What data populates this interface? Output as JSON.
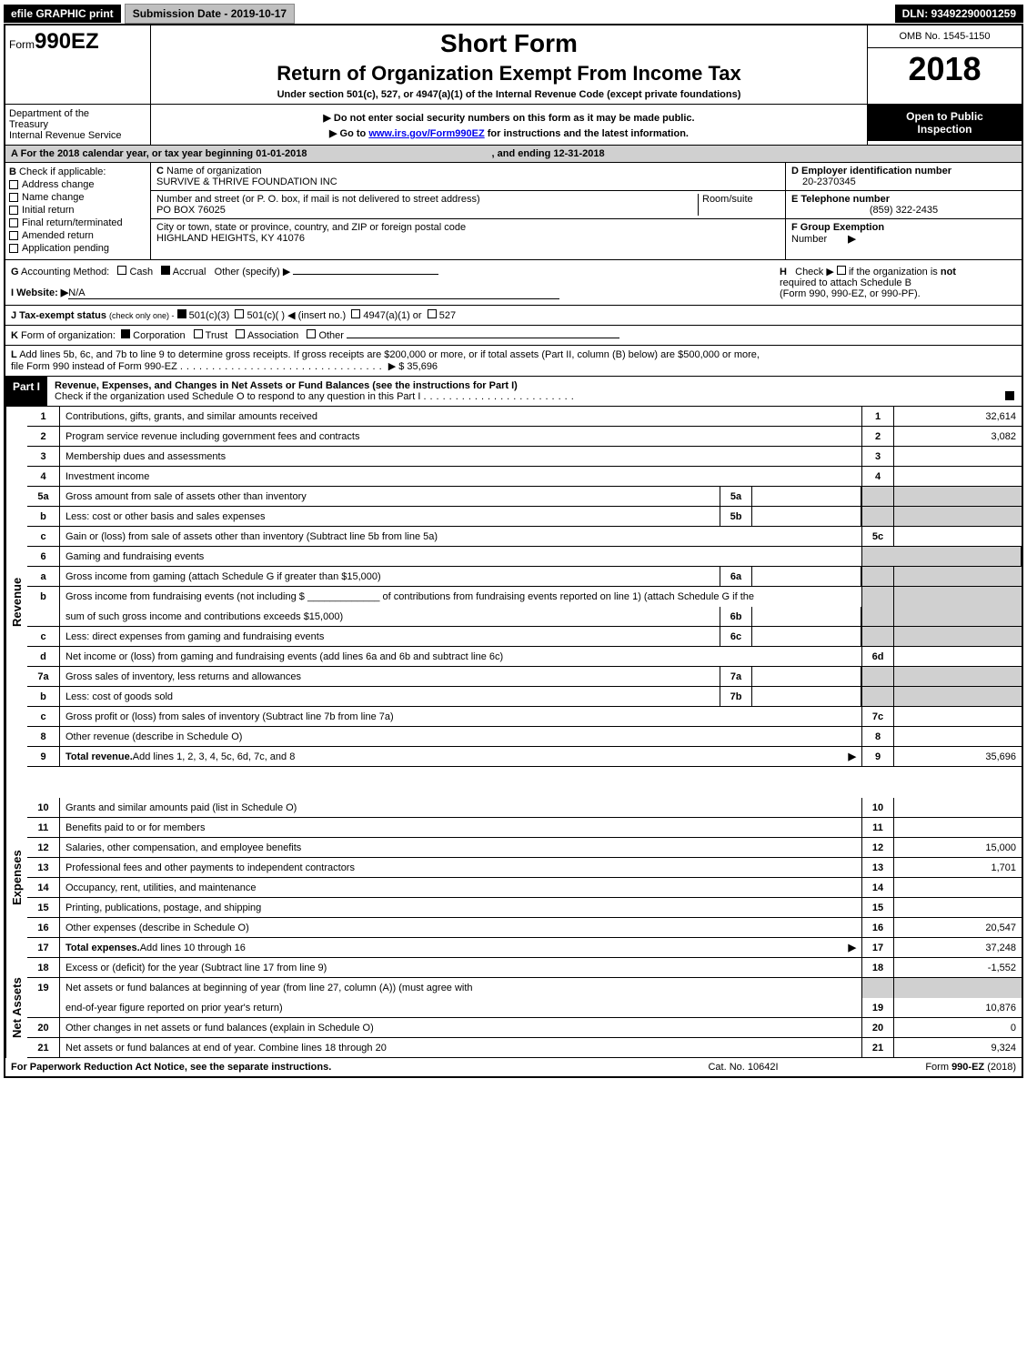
{
  "top_bar": {
    "efile_label": "efile GRAPHIC print",
    "submission_label": "Submission Date - 2019-10-17",
    "dln_label": "DLN: 93492290001259"
  },
  "header": {
    "form_prefix": "Form",
    "form_number": "990EZ",
    "short_form": "Short Form",
    "return_title": "Return of Organization Exempt From Income Tax",
    "subtitle": "Under section 501(c), 527, or 4947(a)(1) of the Internal Revenue Code (except private foundations)",
    "instruction1": "▶ Do not enter social security numbers on this form as it may be made public.",
    "instruction2_pre": "▶ Go to ",
    "instruction2_link": "www.irs.gov/Form990EZ",
    "instruction2_post": " for instructions and the latest information.",
    "omb": "OMB No. 1545-1150",
    "year": "2018",
    "open_public1": "Open to Public",
    "open_public2": "Inspection",
    "dept1": "Department of the",
    "dept2": "Treasury",
    "dept3": "Internal Revenue Service"
  },
  "line_a": {
    "prefix": "A",
    "text_pre": "For the 2018 calendar year, or tax year beginning 01-01-2018",
    "text_post": ", and ending 12-31-2018"
  },
  "section_b": {
    "b_label": "B",
    "check_label": "Check if applicable:",
    "items": [
      "Address change",
      "Name change",
      "Initial return",
      "Final return/terminated",
      "Amended return",
      "Application pending"
    ]
  },
  "section_c": {
    "c_label": "C",
    "name_label": "Name of organization",
    "name_value": "SURVIVE & THRIVE FOUNDATION INC",
    "addr_label": "Number and street (or P. O. box, if mail is not delivered to street address)",
    "room_label": "Room/suite",
    "addr_value": "PO BOX 76025",
    "city_label": "City or town, state or province, country, and ZIP or foreign postal code",
    "city_value": "HIGHLAND HEIGHTS, KY  41076"
  },
  "section_d": {
    "d_label": "D Employer identification number",
    "d_value": "20-2370345",
    "e_label": "E Telephone number",
    "e_value": "(859) 322-2435",
    "f_label": "F Group Exemption",
    "f_label2": "Number",
    "f_arrow": "▶"
  },
  "line_g": {
    "g_label": "G",
    "accounting": "Accounting Method:",
    "cash": "Cash",
    "accrual": "Accrual",
    "other": "Other (specify) ▶",
    "h_label": "H",
    "h_check": "Check ▶",
    "h_text1": "if the organization is",
    "h_not": "not",
    "h_text2": "required to attach Schedule B",
    "h_text3": "(Form 990, 990-EZ, or 990-PF)."
  },
  "line_i": {
    "label": "I Website: ▶",
    "value": "N/A"
  },
  "line_j": {
    "label": "J Tax-exempt status",
    "note": "(check only one) -",
    "opt1": "501(c)(3)",
    "opt2": "501(c)(  )",
    "opt2_note": "◀ (insert no.)",
    "opt3": "4947(a)(1) or",
    "opt4": "527"
  },
  "line_k": {
    "label": "K",
    "text": "Form of organization:",
    "corp": "Corporation",
    "trust": "Trust",
    "assoc": "Association",
    "other": "Other"
  },
  "line_l": {
    "label": "L",
    "text1": "Add lines 5b, 6c, and 7b to line 9 to determine gross receipts. If gross receipts are $200,000 or more, or if total assets (Part II, column (B) below) are $500,000 or more,",
    "text2": "file Form 990 instead of Form 990-EZ",
    "amount": "▶ $ 35,696"
  },
  "part1": {
    "part_label": "Part I",
    "title": "Revenue, Expenses, and Changes in Net Assets or Fund Balances (see the instructions for Part I)",
    "check_text": "Check if the organization used Schedule O to respond to any question in this Part I"
  },
  "side_labels": {
    "revenue": "Revenue",
    "expenses": "Expenses",
    "net_assets": "Net Assets"
  },
  "rows": [
    {
      "num": "1",
      "desc": "Contributions, gifts, grants, and similar amounts received",
      "rnum": "1",
      "val": "32,614"
    },
    {
      "num": "2",
      "desc": "Program service revenue including government fees and contracts",
      "rnum": "2",
      "val": "3,082"
    },
    {
      "num": "3",
      "desc": "Membership dues and assessments",
      "rnum": "3",
      "val": ""
    },
    {
      "num": "4",
      "desc": "Investment income",
      "rnum": "4",
      "val": ""
    },
    {
      "num": "5a",
      "desc": "Gross amount from sale of assets other than inventory",
      "mid": "5a",
      "gray": true
    },
    {
      "num": "b",
      "desc": "Less: cost or other basis and sales expenses",
      "mid": "5b",
      "gray": true
    },
    {
      "num": "c",
      "desc": "Gain or (loss) from sale of assets other than inventory (Subtract line 5b from line 5a)",
      "rnum": "5c",
      "val": ""
    },
    {
      "num": "6",
      "desc": "Gaming and fundraising events",
      "gray": true,
      "fullgray": true
    },
    {
      "num": "a",
      "desc": "Gross income from gaming (attach Schedule G if greater than $15,000)",
      "mid": "6a",
      "gray": true
    },
    {
      "num": "b",
      "desc": "Gross income from fundraising events (not including $ _____________ of contributions from fundraising events reported on line 1) (attach Schedule G if the",
      "gray": true,
      "noborderbottom": true
    },
    {
      "num": "",
      "desc": "sum of such gross income and contributions exceeds $15,000)",
      "mid": "6b",
      "gray": true
    },
    {
      "num": "c",
      "desc": "Less: direct expenses from gaming and fundraising events",
      "mid": "6c",
      "gray": true
    },
    {
      "num": "d",
      "desc": "Net income or (loss) from gaming and fundraising events (add lines 6a and 6b and subtract line 6c)",
      "rnum": "6d",
      "val": ""
    },
    {
      "num": "7a",
      "desc": "Gross sales of inventory, less returns and allowances",
      "mid": "7a",
      "gray": true
    },
    {
      "num": "b",
      "desc": "Less: cost of goods sold",
      "mid": "7b",
      "gray": true
    },
    {
      "num": "c",
      "desc": "Gross profit or (loss) from sales of inventory (Subtract line 7b from line 7a)",
      "rnum": "7c",
      "val": ""
    },
    {
      "num": "8",
      "desc": "Other revenue (describe in Schedule O)",
      "rnum": "8",
      "val": ""
    },
    {
      "num": "9",
      "desc_bold": "Total revenue.",
      "desc": " Add lines 1, 2, 3, 4, 5c, 6d, 7c, and 8",
      "arrow": true,
      "rnum": "9",
      "val": "35,696"
    },
    {
      "num": "10",
      "desc": "Grants and similar amounts paid (list in Schedule O)",
      "rnum": "10",
      "val": ""
    },
    {
      "num": "11",
      "desc": "Benefits paid to or for members",
      "rnum": "11",
      "val": ""
    },
    {
      "num": "12",
      "desc": "Salaries, other compensation, and employee benefits",
      "rnum": "12",
      "val": "15,000"
    },
    {
      "num": "13",
      "desc": "Professional fees and other payments to independent contractors",
      "rnum": "13",
      "val": "1,701"
    },
    {
      "num": "14",
      "desc": "Occupancy, rent, utilities, and maintenance",
      "rnum": "14",
      "val": ""
    },
    {
      "num": "15",
      "desc": "Printing, publications, postage, and shipping",
      "rnum": "15",
      "val": ""
    },
    {
      "num": "16",
      "desc": "Other expenses (describe in Schedule O)",
      "rnum": "16",
      "val": "20,547"
    },
    {
      "num": "17",
      "desc_bold": "Total expenses.",
      "desc": " Add lines 10 through 16",
      "arrow": true,
      "rnum": "17",
      "val": "37,248"
    },
    {
      "num": "18",
      "desc": "Excess or (deficit) for the year (Subtract line 17 from line 9)",
      "rnum": "18",
      "val": "-1,552"
    },
    {
      "num": "19",
      "desc": "Net assets or fund balances at beginning of year (from line 27, column (A)) (must agree with",
      "gray": true,
      "noborderbottom": true
    },
    {
      "num": "",
      "desc": "end-of-year figure reported on prior year's return)",
      "rnum": "19",
      "val": "10,876"
    },
    {
      "num": "20",
      "desc": "Other changes in net assets or fund balances (explain in Schedule O)",
      "rnum": "20",
      "val": "0"
    },
    {
      "num": "21",
      "desc": "Net assets or fund balances at end of year. Combine lines 18 through 20",
      "rnum": "21",
      "val": "9,324"
    }
  ],
  "footer": {
    "left": "For Paperwork Reduction Act Notice, see the separate instructions.",
    "mid": "Cat. No. 10642I",
    "right_pre": "Form ",
    "right_bold": "990-EZ",
    "right_post": " (2018)"
  }
}
